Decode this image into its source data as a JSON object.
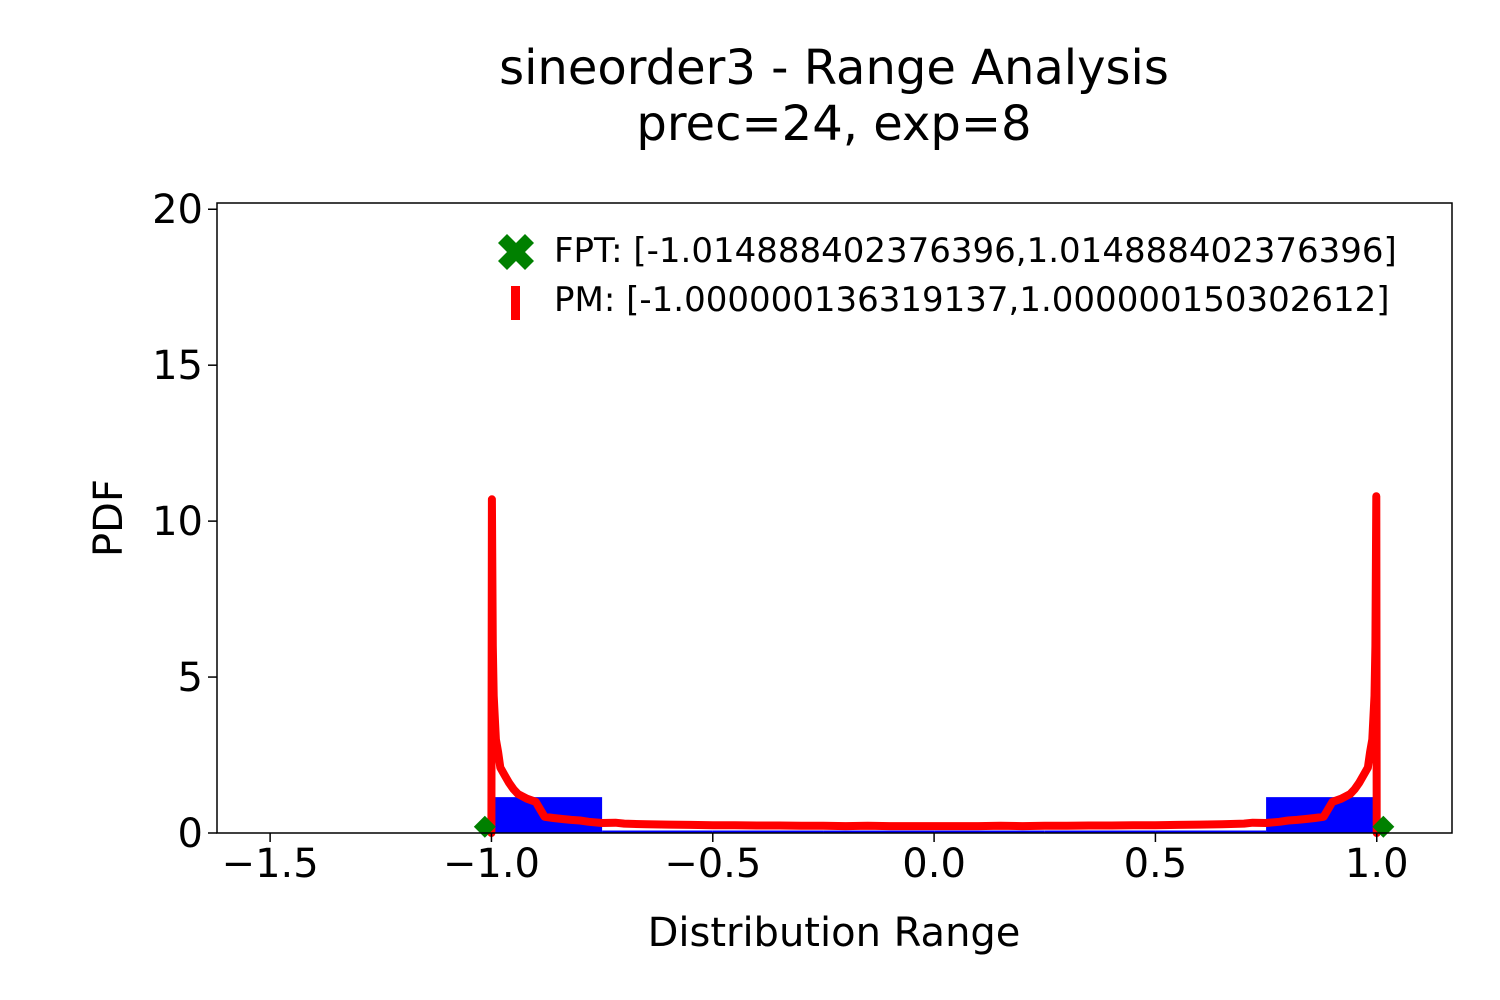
{
  "chart_data": {
    "type": "line",
    "title": "sineorder3 - Range Analysis",
    "subtitle": "prec=24, exp=8",
    "xlabel": "Distribution Range",
    "ylabel": "PDF",
    "xlim": [
      -1.62,
      1.17
    ],
    "ylim": [
      0,
      20.2
    ],
    "grid": false,
    "legend_placement": "top-right",
    "x_ticks": [
      -1.5,
      -1.0,
      -0.5,
      0.0,
      0.5,
      1.0
    ],
    "x_tick_labels": [
      "−1.5",
      "−1.0",
      "−0.5",
      "0.0",
      "0.5",
      "1.0"
    ],
    "y_ticks": [
      0,
      5,
      10,
      15,
      20
    ],
    "y_tick_labels": [
      "0",
      "5",
      "10",
      "15",
      "20"
    ],
    "histogram": {
      "color": "#0000ff",
      "bins": [
        {
          "x0": -1.0,
          "x1": -0.75,
          "value": 1.15
        },
        {
          "x0": -0.75,
          "x1": -0.5,
          "value": 0.08
        },
        {
          "x0": -0.5,
          "x1": -0.25,
          "value": 0.08
        },
        {
          "x0": -0.25,
          "x1": 0.0,
          "value": 0.08
        },
        {
          "x0": 0.0,
          "x1": 0.25,
          "value": 0.08
        },
        {
          "x0": 0.25,
          "x1": 0.5,
          "value": 0.08
        },
        {
          "x0": 0.5,
          "x1": 0.75,
          "value": 0.08
        },
        {
          "x0": 0.75,
          "x1": 1.0,
          "value": 1.15
        }
      ]
    },
    "series": [
      {
        "name": "PM: [-1.000000136319137,1.000000150302612]",
        "color": "#ff0000",
        "x": [
          -1.0,
          -0.999,
          -0.997,
          -0.995,
          -0.99,
          -0.985,
          -0.98,
          -0.97,
          -0.96,
          -0.95,
          -0.94,
          -0.92,
          -0.9,
          -0.88,
          -0.86,
          -0.84,
          -0.82,
          -0.8,
          -0.78,
          -0.75,
          -0.72,
          -0.7,
          -0.65,
          -0.6,
          -0.55,
          -0.5,
          -0.45,
          -0.4,
          -0.35,
          -0.3,
          -0.25,
          -0.2,
          -0.15,
          -0.1,
          -0.05,
          0.0,
          0.05,
          0.1,
          0.15,
          0.2,
          0.25,
          0.3,
          0.35,
          0.4,
          0.45,
          0.5,
          0.55,
          0.6,
          0.65,
          0.7,
          0.72,
          0.75,
          0.78,
          0.8,
          0.82,
          0.84,
          0.86,
          0.88,
          0.9,
          0.92,
          0.94,
          0.95,
          0.96,
          0.97,
          0.98,
          0.985,
          0.99,
          0.995,
          0.997,
          0.999,
          1.0
        ],
        "y": [
          0.0,
          10.7,
          6.0,
          4.4,
          3.0,
          2.6,
          2.1,
          1.85,
          1.6,
          1.4,
          1.25,
          1.1,
          1.0,
          0.52,
          0.48,
          0.45,
          0.42,
          0.4,
          0.36,
          0.32,
          0.33,
          0.3,
          0.28,
          0.27,
          0.26,
          0.25,
          0.25,
          0.24,
          0.24,
          0.23,
          0.23,
          0.22,
          0.23,
          0.22,
          0.22,
          0.22,
          0.22,
          0.22,
          0.23,
          0.22,
          0.23,
          0.23,
          0.24,
          0.24,
          0.25,
          0.25,
          0.26,
          0.27,
          0.28,
          0.3,
          0.33,
          0.32,
          0.36,
          0.4,
          0.42,
          0.45,
          0.48,
          0.52,
          1.0,
          1.1,
          1.25,
          1.4,
          1.6,
          1.85,
          2.1,
          2.6,
          3.0,
          4.4,
          6.0,
          10.8,
          0.0
        ]
      },
      {
        "name": "FPT: [-1.014888402376396,1.014888402376396]",
        "color": "#008000",
        "marker": "X",
        "x": [
          -1.014888402376396,
          1.014888402376396
        ],
        "y": [
          0.2,
          0.2
        ]
      }
    ]
  }
}
